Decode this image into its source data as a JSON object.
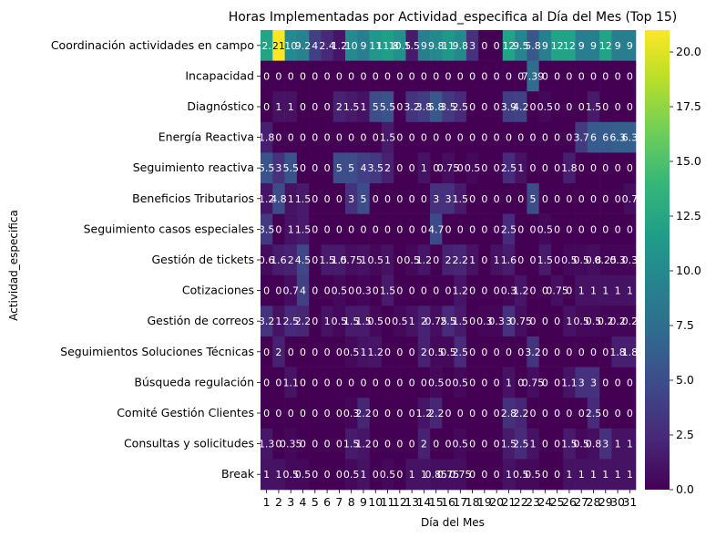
{
  "chart_data": {
    "type": "heatmap",
    "title": "Horas Implementadas por Actividad_especifica al Día del Mes (Top 15)",
    "xlabel": "Día del Mes",
    "ylabel": "Actividad_especifica",
    "x": [
      1,
      2,
      3,
      4,
      5,
      6,
      7,
      8,
      9,
      10,
      11,
      12,
      13,
      14,
      15,
      16,
      17,
      18,
      19,
      20,
      21,
      22,
      23,
      24,
      25,
      26,
      27,
      28,
      29,
      30,
      31
    ],
    "y": [
      "Coordinación actividades en campo",
      "Incapacidad",
      "Diagnóstico",
      "Energía Reactiva",
      "Seguimiento reactiva",
      "Beneficios Tributarios",
      "Seguimiento casos especiales",
      "Gestión de tickets",
      "Cotizaciones",
      "Gestión de correos",
      "Seguimientos Soluciones Técnicas",
      "Búsqueda regulación",
      "Comité Gestión Clientes",
      "Consultas y solicitudes",
      "Break"
    ],
    "vmin": 0,
    "vmax": 21,
    "colorbar_ticks": [
      "0.0",
      "2.5",
      "5.0",
      "7.5",
      "10.0",
      "12.5",
      "15.0",
      "17.5",
      "20.0"
    ],
    "colormap": [
      "#440154",
      "#482878",
      "#3e4989",
      "#31688e",
      "#26828e",
      "#1f9e89",
      "#35b779",
      "#6ece58",
      "#b5de2b",
      "#fde725"
    ],
    "values": [
      [
        "12.2",
        "21",
        "10",
        "9.2",
        "4",
        "2.4",
        "1.2",
        "10",
        "9",
        "11",
        "11.8",
        "10.5",
        "1.5",
        "9",
        "9.8",
        "11",
        "9.8",
        "3",
        "0",
        "0",
        "12",
        "9.5",
        "5.8",
        "9",
        "12",
        "12",
        "9",
        "9",
        "12",
        "9",
        "9"
      ],
      [
        "0",
        "0",
        "0",
        "0",
        "0",
        "0",
        "0",
        "0",
        "0",
        "0",
        "0",
        "0",
        "0",
        "0",
        "0",
        "0",
        "0",
        "0",
        "0",
        "0",
        "0",
        "0",
        "7.39",
        "0",
        "0",
        "0",
        "0",
        "0",
        "0",
        "0",
        "0"
      ],
      [
        "0",
        "1",
        "1",
        "0",
        "0",
        "0",
        "2",
        "1.5",
        "1",
        "5",
        "5.5",
        "0",
        "3.2",
        "3.8",
        "5.8",
        "3.5",
        "2.5",
        "0",
        "0",
        "0",
        "3.9",
        "4.2",
        "0",
        "0.5",
        "0",
        "0",
        "0",
        "1.5",
        "0",
        "0",
        "0"
      ],
      [
        "1.8",
        "0",
        "0",
        "0",
        "0",
        "0",
        "0",
        "0",
        "0",
        "0",
        "1.5",
        "0",
        "0",
        "0",
        "0",
        "0",
        "0",
        "0",
        "0",
        "0",
        "0",
        "0",
        "0",
        "0",
        "0",
        "0",
        "3.7",
        "6",
        "6",
        "6.3",
        "6.3"
      ],
      [
        "5.5",
        "3",
        "5.5",
        "0",
        "0",
        "0",
        "5",
        "5",
        "4",
        "3.5",
        "2",
        "0",
        "0",
        "1",
        "0",
        "0.75",
        "0",
        "0.5",
        "0",
        "0",
        "2.5",
        "1",
        "0",
        "0",
        "0",
        "1.8",
        "0",
        "0",
        "0",
        "0",
        "0"
      ],
      [
        "1.2",
        "4.8",
        "1",
        "1.5",
        "0",
        "0",
        "0",
        "3",
        "5",
        "0",
        "0",
        "0",
        "0",
        "0",
        "3",
        "3",
        "1.5",
        "0",
        "0",
        "0",
        "0",
        "0",
        "5",
        "0",
        "0",
        "0",
        "0",
        "0",
        "0",
        "0",
        "0.7"
      ],
      [
        "3.5",
        "0",
        "1",
        "1.5",
        "0",
        "0",
        "0",
        "0",
        "0",
        "0",
        "0",
        "0",
        "0",
        "0",
        "4.7",
        "0",
        "0",
        "0",
        "0",
        "0",
        "2.5",
        "0",
        "0",
        "0.5",
        "0",
        "0",
        "0",
        "0",
        "0",
        "0",
        "0"
      ],
      [
        "0.6",
        "1.6",
        "2",
        "4.5",
        "0",
        "1.5",
        "1.5",
        "0.75",
        "1",
        "0.5",
        "1",
        "0",
        "0.5",
        "1.2",
        "0",
        "2",
        "2.2",
        "1",
        "0",
        "1",
        "1.6",
        "0",
        "0",
        "1.5",
        "0",
        "0.5",
        "0.5",
        "0.8",
        "0.25",
        "0.3",
        "0.3"
      ],
      [
        "0",
        "0",
        "0.7",
        "4",
        "0",
        "0",
        "0.5",
        "0",
        "0.3",
        "0",
        "1.5",
        "0",
        "0",
        "0",
        "0",
        "0",
        "1.2",
        "0",
        "0",
        "0",
        "0.3",
        "1.2",
        "0",
        "0",
        "0.75",
        "0",
        "1",
        "1",
        "1",
        "1",
        "1"
      ],
      [
        "3.2",
        "1",
        "2.5",
        "2.2",
        "0",
        "1",
        "0.5",
        "1.5",
        "1.5",
        "0.5",
        "0",
        "0.5",
        "1",
        "2",
        "0.75",
        "2.5",
        "1.5",
        "0",
        "0.3",
        "0.3",
        "3",
        "0.75",
        "0",
        "0",
        "0",
        "1",
        "0.5",
        "0.5",
        "0.2",
        "0.2",
        "0.2"
      ],
      [
        "0",
        "2",
        "0",
        "0",
        "0",
        "0",
        "0",
        "0.5",
        "1",
        "1.2",
        "0",
        "0",
        "0",
        "2",
        "0.5",
        "0.5",
        "2.5",
        "0",
        "0",
        "0",
        "0",
        "0",
        "3.2",
        "0",
        "0",
        "0",
        "0",
        "0",
        "0",
        "1.8",
        "1.8"
      ],
      [
        "0",
        "0",
        "1.1",
        "0",
        "0",
        "0",
        "0",
        "0",
        "0",
        "0",
        "0",
        "0",
        "0",
        "0",
        "0.5",
        "0",
        "0.5",
        "0",
        "0",
        "0",
        "1",
        "0",
        "0.75",
        "0",
        "0",
        "1.1",
        "3",
        "3",
        "0",
        "0",
        "0"
      ],
      [
        "0",
        "0",
        "0",
        "0",
        "0",
        "0",
        "0",
        "0.3",
        "2.2",
        "0",
        "0",
        "0",
        "0",
        "1.2",
        "2.2",
        "0",
        "0",
        "0",
        "0",
        "0",
        "2.8",
        "2.2",
        "0",
        "0",
        "0",
        "0",
        "0",
        "2.5",
        "0",
        "0",
        "0"
      ],
      [
        "1.3",
        "0",
        "0.35",
        "0",
        "0",
        "0",
        "0",
        "1.5",
        "1.2",
        "0",
        "0",
        "0",
        "0",
        "2",
        "0",
        "0",
        "0.5",
        "0",
        "0",
        "0",
        "1.5",
        "2.5",
        "1",
        "0",
        "0",
        "1.5",
        "0.5",
        "0.8",
        "3",
        "1",
        "1"
      ],
      [
        "1",
        "1",
        "0.5",
        "0.5",
        "0",
        "0",
        "0",
        "0.5",
        "1",
        "0",
        "0.5",
        "0",
        "1",
        "1",
        "0.85",
        "0.75",
        "0.75",
        "0",
        "0",
        "0",
        "1",
        "0.5",
        "0.5",
        "0",
        "0",
        "1",
        "1",
        "1",
        "1",
        "1",
        "1"
      ]
    ]
  }
}
